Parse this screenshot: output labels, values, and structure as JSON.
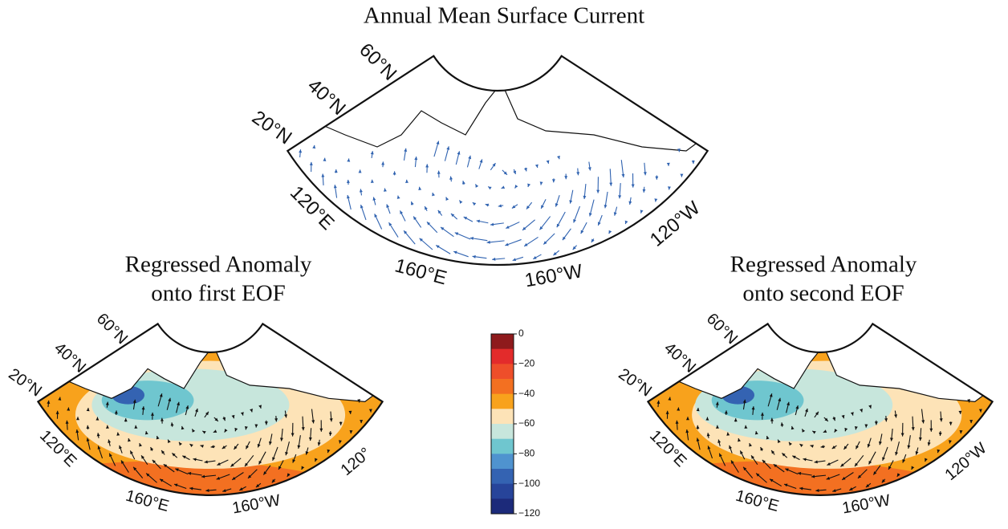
{
  "title": "Annual Mean Surface Current",
  "panels": [
    {
      "arrow_color": "#2f62b0",
      "shaded": false,
      "lat_labels": [
        "20°N",
        "40°N",
        "60°N"
      ],
      "lon_labels": [
        "120°E",
        "160°E",
        "160°W",
        "120°W"
      ]
    },
    {
      "title": [
        "Regressed Anomaly",
        "onto first EOF"
      ],
      "arrow_color": "#111111",
      "shaded": true,
      "lat_labels": [
        "20°N",
        "40°N",
        "60°N"
      ],
      "lon_labels": [
        "120°E",
        "160°E",
        "160°W",
        "120°"
      ]
    },
    {
      "title": [
        "Regressed Anomaly",
        "onto second EOF"
      ],
      "arrow_color": "#111111",
      "shaded": true,
      "lat_labels": [
        "20°N",
        "40°N",
        "60°N"
      ],
      "lon_labels": [
        "120°E",
        "160°E",
        "160°W",
        "120°W"
      ]
    }
  ],
  "colorbar": {
    "lim": [
      -120,
      0
    ],
    "ticks": [
      0,
      {
        "value": -20,
        "label": "−20"
      },
      {
        "value": -40,
        "label": "−40"
      },
      {
        "value": -60,
        "label": "−60"
      },
      {
        "value": -80,
        "label": "−80"
      },
      {
        "value": -100,
        "label": "−100"
      },
      {
        "value": -120,
        "label": "−120"
      }
    ],
    "colors": [
      "#8e1a1c",
      "#e32b2b",
      "#ee4e2a",
      "#f37021",
      "#f8a21c",
      "#fde3b7",
      "#c7e6dc",
      "#6fc6cf",
      "#4f93cf",
      "#3463b2",
      "#27449a",
      "#1c2a7a"
    ]
  }
}
